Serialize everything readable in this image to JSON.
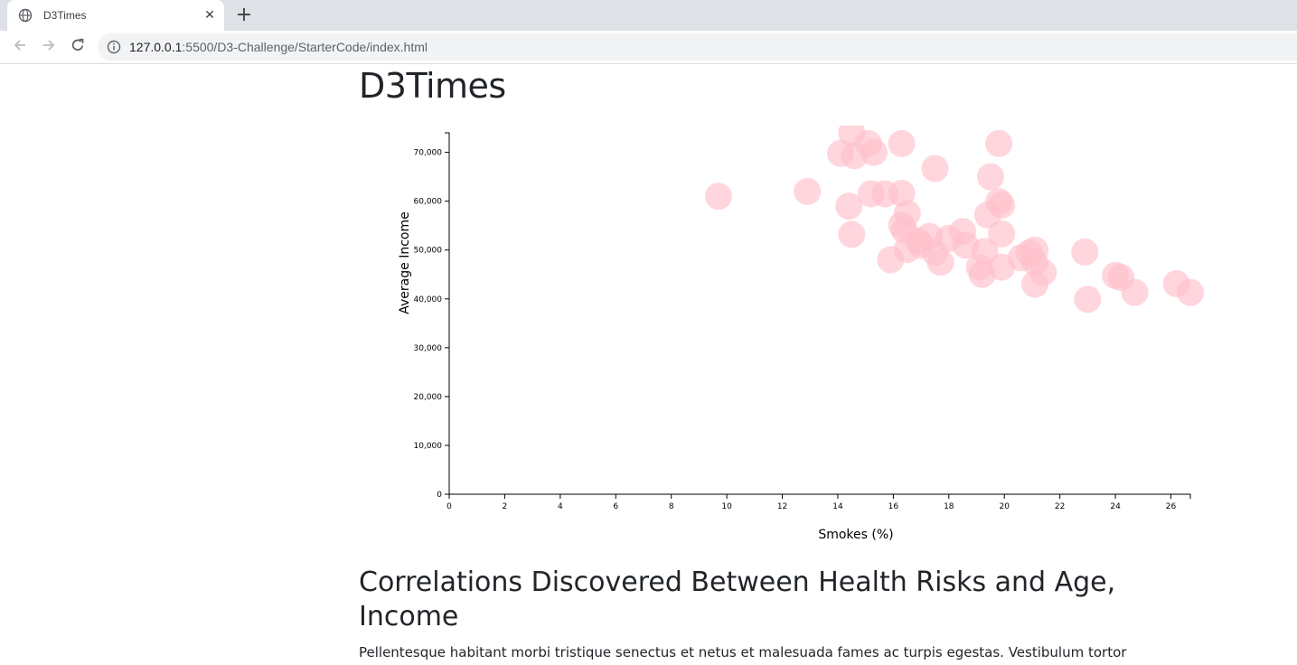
{
  "browser": {
    "tab_title": "D3Times",
    "url_host": "127.0.0.1",
    "url_path": ":5500/D3-Challenge/StarterCode/index.html",
    "tab_close_glyph": "✕",
    "new_tab_glyph": "+",
    "favicon": "globe-icon"
  },
  "page": {
    "title": "D3Times",
    "section_heading": "Correlations Discovered Between Health Risks and Age, Income",
    "body_text": "Pellentesque habitant morbi tristique senectus et netus et malesuada fames ac turpis egestas. Vestibulum tortor"
  },
  "chart_data": {
    "type": "scatter",
    "xlabel": "Smokes (%)",
    "ylabel": "Average Income",
    "xlim": [
      0,
      26.7
    ],
    "ylim": [
      0,
      74000
    ],
    "xticks": [
      0,
      2,
      4,
      6,
      8,
      10,
      12,
      14,
      16,
      18,
      20,
      22,
      24,
      26
    ],
    "yticks": [
      0,
      10000,
      20000,
      30000,
      40000,
      50000,
      60000,
      70000
    ],
    "ytick_labels": [
      "0",
      "10,000",
      "20,000",
      "30,000",
      "40,000",
      "50,000",
      "60,000",
      "70,000"
    ],
    "marker_color": "#ffc0cb",
    "marker_opacity": 0.65,
    "points": [
      {
        "x": 9.7,
        "y": 61000
      },
      {
        "x": 12.9,
        "y": 62000
      },
      {
        "x": 14.1,
        "y": 69800
      },
      {
        "x": 14.5,
        "y": 74000
      },
      {
        "x": 14.6,
        "y": 69300
      },
      {
        "x": 14.4,
        "y": 59000
      },
      {
        "x": 14.5,
        "y": 53200
      },
      {
        "x": 15.1,
        "y": 71800
      },
      {
        "x": 15.3,
        "y": 70000
      },
      {
        "x": 15.2,
        "y": 61500
      },
      {
        "x": 15.7,
        "y": 61500
      },
      {
        "x": 16.3,
        "y": 71800
      },
      {
        "x": 16.3,
        "y": 61600
      },
      {
        "x": 16.5,
        "y": 57500
      },
      {
        "x": 16.3,
        "y": 55100
      },
      {
        "x": 16.4,
        "y": 54000
      },
      {
        "x": 16.5,
        "y": 50100
      },
      {
        "x": 15.9,
        "y": 48000
      },
      {
        "x": 16.9,
        "y": 51800
      },
      {
        "x": 17.0,
        "y": 51000
      },
      {
        "x": 17.3,
        "y": 52800
      },
      {
        "x": 17.5,
        "y": 49500
      },
      {
        "x": 17.7,
        "y": 47500
      },
      {
        "x": 17.5,
        "y": 66700
      },
      {
        "x": 18.0,
        "y": 52400
      },
      {
        "x": 18.5,
        "y": 53800
      },
      {
        "x": 18.6,
        "y": 51000
      },
      {
        "x": 19.1,
        "y": 46500
      },
      {
        "x": 19.2,
        "y": 45000
      },
      {
        "x": 19.3,
        "y": 49700
      },
      {
        "x": 19.4,
        "y": 57200
      },
      {
        "x": 19.5,
        "y": 65000
      },
      {
        "x": 19.8,
        "y": 71800
      },
      {
        "x": 19.8,
        "y": 59900
      },
      {
        "x": 19.9,
        "y": 59200
      },
      {
        "x": 19.9,
        "y": 53300
      },
      {
        "x": 19.9,
        "y": 46500
      },
      {
        "x": 20.6,
        "y": 48400
      },
      {
        "x": 20.9,
        "y": 49400
      },
      {
        "x": 21.1,
        "y": 50000
      },
      {
        "x": 21.1,
        "y": 47500
      },
      {
        "x": 21.1,
        "y": 43000
      },
      {
        "x": 21.4,
        "y": 45400
      },
      {
        "x": 22.9,
        "y": 49600
      },
      {
        "x": 23.0,
        "y": 39900
      },
      {
        "x": 24.0,
        "y": 44800
      },
      {
        "x": 24.2,
        "y": 44400
      },
      {
        "x": 24.7,
        "y": 41300
      },
      {
        "x": 26.2,
        "y": 43100
      },
      {
        "x": 26.7,
        "y": 41300
      }
    ]
  }
}
